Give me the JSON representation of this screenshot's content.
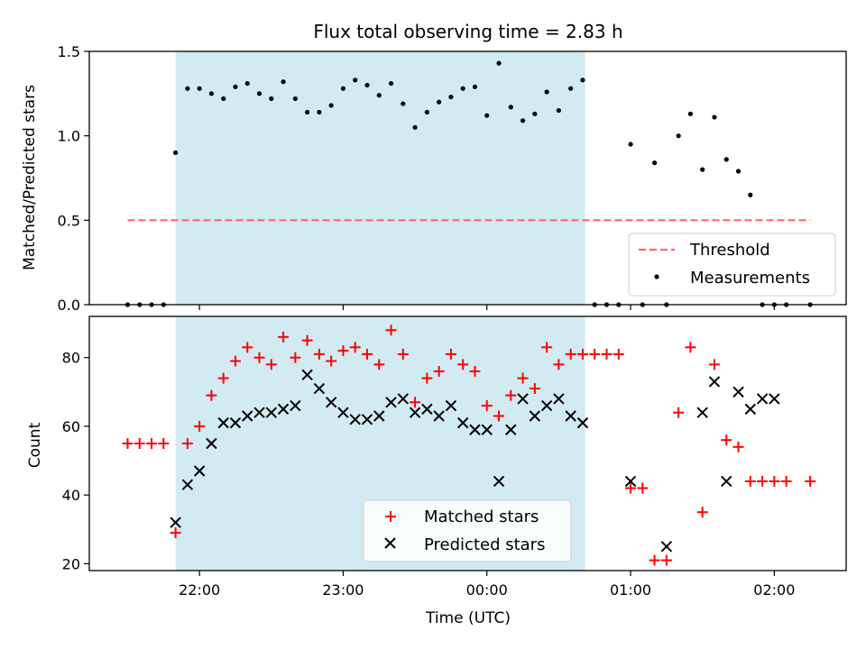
{
  "chart_data": [
    {
      "type": "scatter",
      "title": "Flux total observing time = 2.83 h",
      "xlabel": "",
      "ylabel": "Matched/Predicted stars",
      "xlim": [
        "21:14",
        "02:30"
      ],
      "ylim": [
        0,
        1.5
      ],
      "yticks": [
        "0.0",
        "0.5",
        "1.0",
        "1.5"
      ],
      "shaded_interval": [
        "21:50",
        "00:41"
      ],
      "shade_color": "#add8e6",
      "legend": "lower right",
      "legend_entries": [
        "Threshold",
        "Measurements"
      ],
      "threshold": {
        "name": "Threshold",
        "value": 0.5,
        "x": [
          "21:30",
          "02:15"
        ],
        "color": "#ff6666",
        "style": "dashed"
      },
      "series": [
        {
          "name": "Measurements",
          "color": "#000000",
          "marker": "dot",
          "x": [
            "21:30",
            "21:35",
            "21:40",
            "21:45",
            "21:50",
            "21:55",
            "22:00",
            "22:05",
            "22:10",
            "22:15",
            "22:20",
            "22:25",
            "22:30",
            "22:35",
            "22:40",
            "22:45",
            "22:50",
            "22:55",
            "23:00",
            "23:05",
            "23:10",
            "23:15",
            "23:20",
            "23:25",
            "23:30",
            "23:35",
            "23:40",
            "23:45",
            "23:50",
            "23:55",
            "00:00",
            "00:05",
            "00:10",
            "00:15",
            "00:20",
            "00:25",
            "00:30",
            "00:35",
            "00:40",
            "00:45",
            "00:50",
            "00:55",
            "01:00",
            "01:05",
            "01:10",
            "01:15",
            "01:20",
            "01:25",
            "01:30",
            "01:35",
            "01:40",
            "01:45",
            "01:50",
            "01:55",
            "02:00",
            "02:05",
            "02:15"
          ],
          "y": [
            0,
            0,
            0,
            0,
            0.9,
            1.28,
            1.28,
            1.25,
            1.22,
            1.29,
            1.31,
            1.25,
            1.22,
            1.32,
            1.22,
            1.14,
            1.14,
            1.18,
            1.28,
            1.33,
            1.3,
            1.24,
            1.31,
            1.19,
            1.05,
            1.14,
            1.2,
            1.23,
            1.28,
            1.29,
            1.12,
            1.43,
            1.17,
            1.09,
            1.13,
            1.26,
            1.15,
            1.28,
            1.33,
            0,
            0,
            0,
            0.95,
            0,
            0.84,
            0,
            1.0,
            1.13,
            0.8,
            1.11,
            0.86,
            0.79,
            0.65,
            0,
            0,
            0,
            0
          ]
        }
      ]
    },
    {
      "type": "scatter",
      "title": "",
      "xlabel": "Time (UTC)",
      "ylabel": "Count",
      "xlim": [
        "21:14",
        "02:30"
      ],
      "ylim": [
        18,
        92
      ],
      "yticks": [
        "20",
        "40",
        "60",
        "80"
      ],
      "xticks": [
        "22:00",
        "23:00",
        "00:00",
        "01:00",
        "02:00"
      ],
      "shaded_interval": [
        "21:50",
        "00:41"
      ],
      "shade_color": "#add8e6",
      "legend": "lower center",
      "legend_entries": [
        "Matched stars",
        "Predicted stars"
      ],
      "series": [
        {
          "name": "Matched stars",
          "color": "#ff0000",
          "marker": "plus",
          "x": [
            "21:30",
            "21:35",
            "21:40",
            "21:45",
            "21:50",
            "21:55",
            "22:00",
            "22:05",
            "22:10",
            "22:15",
            "22:20",
            "22:25",
            "22:30",
            "22:35",
            "22:40",
            "22:45",
            "22:50",
            "22:55",
            "23:00",
            "23:05",
            "23:10",
            "23:15",
            "23:20",
            "23:25",
            "23:30",
            "23:35",
            "23:40",
            "23:45",
            "23:50",
            "23:55",
            "00:00",
            "00:05",
            "00:10",
            "00:15",
            "00:20",
            "00:25",
            "00:30",
            "00:35",
            "00:40",
            "00:45",
            "00:50",
            "00:55",
            "01:00",
            "01:05",
            "01:10",
            "01:15",
            "01:20",
            "01:25",
            "01:30",
            "01:35",
            "01:40",
            "01:45",
            "01:50",
            "01:55",
            "02:00",
            "02:05",
            "02:15"
          ],
          "y": [
            55,
            55,
            55,
            55,
            29,
            55,
            60,
            69,
            74,
            79,
            83,
            80,
            78,
            86,
            80,
            85,
            81,
            79,
            82,
            83,
            81,
            78,
            88,
            81,
            67,
            74,
            76,
            81,
            78,
            76,
            66,
            63,
            69,
            74,
            71,
            83,
            78,
            81,
            81,
            81,
            81,
            81,
            42,
            42,
            21,
            21,
            64,
            83,
            35,
            78,
            56,
            54,
            44,
            44,
            44,
            44,
            44
          ]
        },
        {
          "name": "Predicted stars",
          "color": "#000000",
          "marker": "x",
          "x": [
            "21:50",
            "21:55",
            "22:00",
            "22:05",
            "22:10",
            "22:15",
            "22:20",
            "22:25",
            "22:30",
            "22:35",
            "22:40",
            "22:45",
            "22:50",
            "22:55",
            "23:00",
            "23:05",
            "23:10",
            "23:15",
            "23:20",
            "23:25",
            "23:30",
            "23:35",
            "23:40",
            "23:45",
            "23:50",
            "23:55",
            "00:00",
            "00:05",
            "00:10",
            "00:15",
            "00:20",
            "00:25",
            "00:30",
            "00:35",
            "00:40",
            "01:00",
            "01:15",
            "01:30",
            "01:35",
            "01:40",
            "01:45",
            "01:50",
            "01:55",
            "02:00"
          ],
          "y": [
            32,
            43,
            47,
            55,
            61,
            61,
            63,
            64,
            64,
            65,
            66,
            75,
            71,
            67,
            64,
            62,
            62,
            63,
            67,
            68,
            64,
            65,
            63,
            66,
            61,
            59,
            59,
            44,
            59,
            68,
            63,
            66,
            68,
            63,
            61,
            44,
            25,
            64,
            73,
            44,
            70,
            65,
            68,
            68
          ]
        }
      ]
    }
  ]
}
